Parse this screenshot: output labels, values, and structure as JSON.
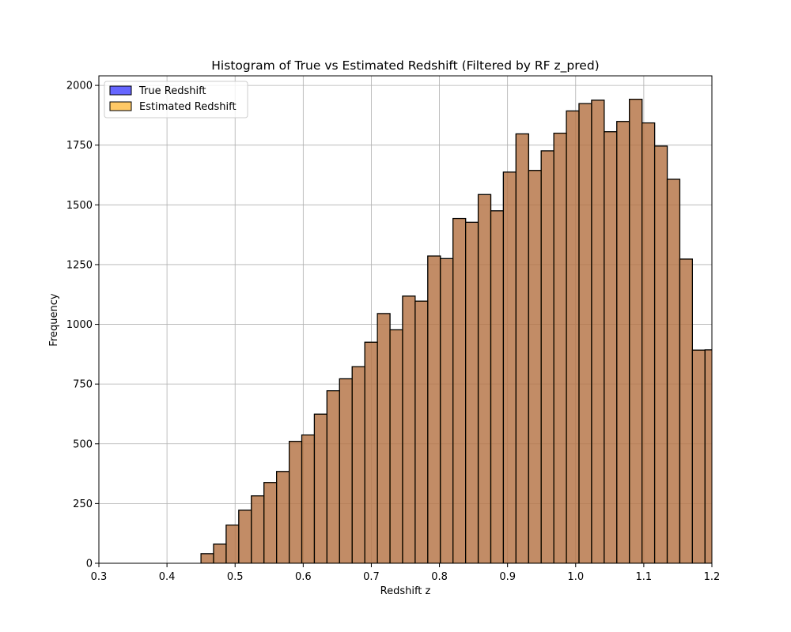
{
  "chart_data": {
    "type": "bar",
    "chart_kind": "histogram",
    "title": "Histogram of True vs Estimated Redshift (Filtered by RF z_pred)",
    "xlabel": "Redshift z",
    "ylabel": "Frequency",
    "xlim": [
      0.3,
      1.2
    ],
    "ylim": [
      0,
      2040
    ],
    "grid": true,
    "legend_position": "top-left",
    "x_ticks": [
      "0.3",
      "0.4",
      "0.5",
      "0.6",
      "0.7",
      "0.8",
      "0.9",
      "1.0",
      "1.1",
      "1.2"
    ],
    "x_tick_values": [
      0.3,
      0.4,
      0.5,
      0.6,
      0.7,
      0.8,
      0.9,
      1.0,
      1.1,
      1.2
    ],
    "y_ticks": [
      "0",
      "250",
      "500",
      "750",
      "1000",
      "1250",
      "1500",
      "1750",
      "2000"
    ],
    "y_tick_values": [
      0,
      250,
      500,
      750,
      1000,
      1250,
      1500,
      1750,
      2000
    ],
    "bin_edges": [
      0.4499,
      0.4684,
      0.4869,
      0.5054,
      0.5239,
      0.5424,
      0.5609,
      0.5794,
      0.5979,
      0.6164,
      0.6349,
      0.6534,
      0.6719,
      0.6904,
      0.7089,
      0.7274,
      0.7459,
      0.7644,
      0.7829,
      0.8014,
      0.8199,
      0.8384,
      0.8569,
      0.8754,
      0.8939,
      0.9124,
      0.9309,
      0.9494,
      0.9679,
      0.9864,
      1.0049,
      1.0234,
      1.0419,
      1.0604,
      1.0789,
      1.0974,
      1.1159,
      1.1344,
      1.1529,
      1.1714,
      1.1899,
      1.2084
    ],
    "series": [
      {
        "name": "True Redshift",
        "color": "#0000ff",
        "alpha": 0.6,
        "values": [
          40,
          80,
          160,
          222,
          282,
          338,
          384,
          510,
          537,
          624,
          722,
          772,
          823,
          925,
          1045,
          977,
          1118,
          1097,
          1286,
          1275,
          1443,
          1427,
          1543,
          1475,
          1637,
          1797,
          1644,
          1726,
          1800,
          1893,
          1924,
          1938,
          1806,
          1849,
          1942,
          1843,
          1746,
          1607,
          1273,
          892,
          893
        ]
      },
      {
        "name": "Estimated Redshift",
        "color": "#ffa500",
        "alpha": 0.6,
        "values": [
          40,
          80,
          160,
          222,
          282,
          338,
          384,
          510,
          537,
          624,
          722,
          772,
          823,
          925,
          1045,
          977,
          1118,
          1097,
          1286,
          1275,
          1443,
          1427,
          1543,
          1475,
          1637,
          1797,
          1644,
          1726,
          1800,
          1893,
          1924,
          1938,
          1806,
          1849,
          1942,
          1843,
          1746,
          1607,
          1273,
          892,
          893
        ]
      }
    ],
    "overlap_color": "#c08a62",
    "edge_color": "#000000"
  }
}
